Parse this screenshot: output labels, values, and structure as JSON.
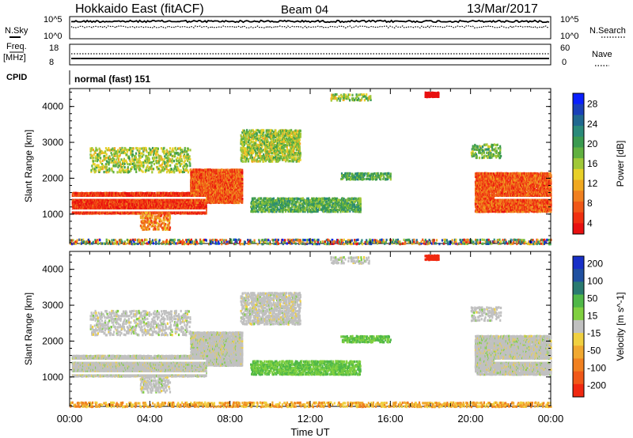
{
  "header": {
    "title": "Hokkaido East (fitACF)",
    "beam": "Beam 04",
    "date": "13/Mar/2017"
  },
  "aux": {
    "nsky_label": "N.Sky",
    "nsearch_label": "N.Search",
    "nsky_ticks": [
      "10^5",
      "10^0"
    ],
    "nsearch_ticks": [
      "10^5",
      "10^0"
    ],
    "freq_label": "Freq.",
    "freq_unit": "[MHz]",
    "freq_ticks": [
      "18",
      "8"
    ],
    "nave_label": "Nave",
    "nave_ticks": [
      "60",
      "0"
    ],
    "cpid_label": "CPID",
    "cpid_value": "normal (fast) 151"
  },
  "chart_data": [
    {
      "type": "heatmap",
      "quantity": "power",
      "ylabel": "Slant Range [km]",
      "xlabel": "Time UT",
      "xlim": [
        "00:00",
        "24:00"
      ],
      "ylim": [
        180,
        4500
      ],
      "yticks": [
        1000,
        2000,
        3000,
        4000
      ],
      "xtick_labels": [
        "00:00",
        "04:00",
        "08:00",
        "12:00",
        "16:00",
        "20:00",
        "00:00"
      ],
      "colorbar": {
        "label": "Power [dB]",
        "ticks": [
          4,
          8,
          12,
          16,
          20,
          24,
          28
        ],
        "range": [
          0,
          30
        ],
        "colors": [
          "#0a20ff",
          "#1a40b8",
          "#206890",
          "#2a8a7a",
          "#3a9a50",
          "#60b040",
          "#a0c838",
          "#e8d028",
          "#f0a820",
          "#f08020",
          "#f05818",
          "#f03010",
          "#e81010"
        ]
      }
    },
    {
      "type": "heatmap",
      "quantity": "velocity",
      "ylabel": "Slant Range [km]",
      "xlabel": "Time UT",
      "xlim": [
        "00:00",
        "24:00"
      ],
      "ylim": [
        180,
        4500
      ],
      "yticks": [
        1000,
        2000,
        3000,
        4000
      ],
      "xtick_labels": [
        "00:00",
        "04:00",
        "08:00",
        "12:00",
        "16:00",
        "20:00",
        "00:00"
      ],
      "colorbar": {
        "label": "Velocity [m s^-1]",
        "ticks": [
          "200",
          "100",
          "50",
          "15",
          "-15",
          "-50",
          "-100",
          "-200"
        ],
        "colors": [
          "#1830c8",
          "#2050a0",
          "#2a7a70",
          "#50b848",
          "#80d040",
          "#c0c0c0",
          "#f0d040",
          "#f0a830",
          "#f08020",
          "#f05818",
          "#f02810"
        ]
      }
    }
  ]
}
